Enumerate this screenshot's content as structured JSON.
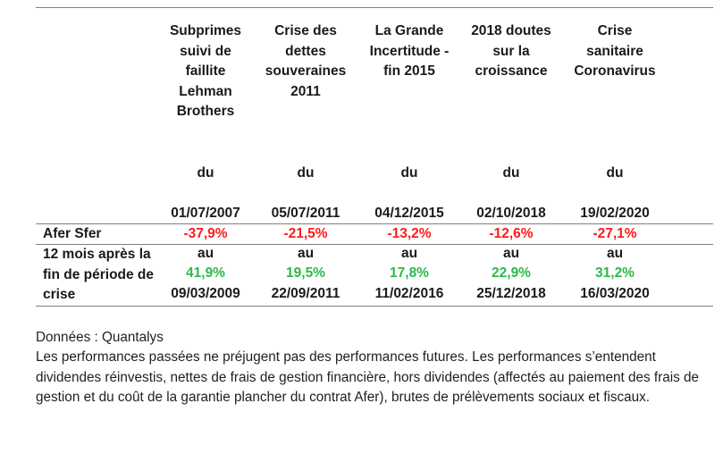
{
  "columns": [
    {
      "title": "Subprimes\nsuivi de\nfaillite\nLehman\nBrothers",
      "date_from_label": "du",
      "date_from": "01/07/2007",
      "date_to_label": "au",
      "date_to": "09/03/2009"
    },
    {
      "title": "Crise des\ndettes\nsouveraines\n2011",
      "date_from_label": "du",
      "date_from": "05/07/2011",
      "date_to_label": "au",
      "date_to": "22/09/2011"
    },
    {
      "title": "La Grande\nIncertitude -\nfin 2015",
      "date_from_label": "du",
      "date_from": "04/12/2015",
      "date_to_label": "au",
      "date_to": "11/02/2016"
    },
    {
      "title": "2018 doutes\nsur la\ncroissance",
      "date_from_label": "du",
      "date_from": "02/10/2018",
      "date_to_label": "au",
      "date_to": "25/12/2018"
    },
    {
      "title": "Crise\nsanitaire\nCoronavirus",
      "date_from_label": "du",
      "date_from": "19/02/2020",
      "date_to_label": "au",
      "date_to": "16/03/2020"
    }
  ],
  "rows": [
    {
      "label": "Afer Sfer",
      "values": [
        "-37,9%",
        "-21,5%",
        "-13,2%",
        "-12,6%",
        "-27,1%"
      ],
      "color": "#ff1a1a"
    },
    {
      "label": "12 mois après la\nfin de période de\ncrise",
      "values": [
        "41,9%",
        "19,5%",
        "17,8%",
        "22,9%",
        "31,2%"
      ],
      "color": "#2eb84a"
    }
  ],
  "notes": {
    "source": "Données : Quantalys",
    "disclaimer": "Les performances passées ne préjugent pas des performances futures. Les performances s’entendent dividendes réinvestis, nettes de frais de gestion financière, hors dividendes (affectés au paiement des frais de gestion et du coût de la garantie plancher du contrat Afer), brutes de prélèvements sociaux et fiscaux."
  }
}
